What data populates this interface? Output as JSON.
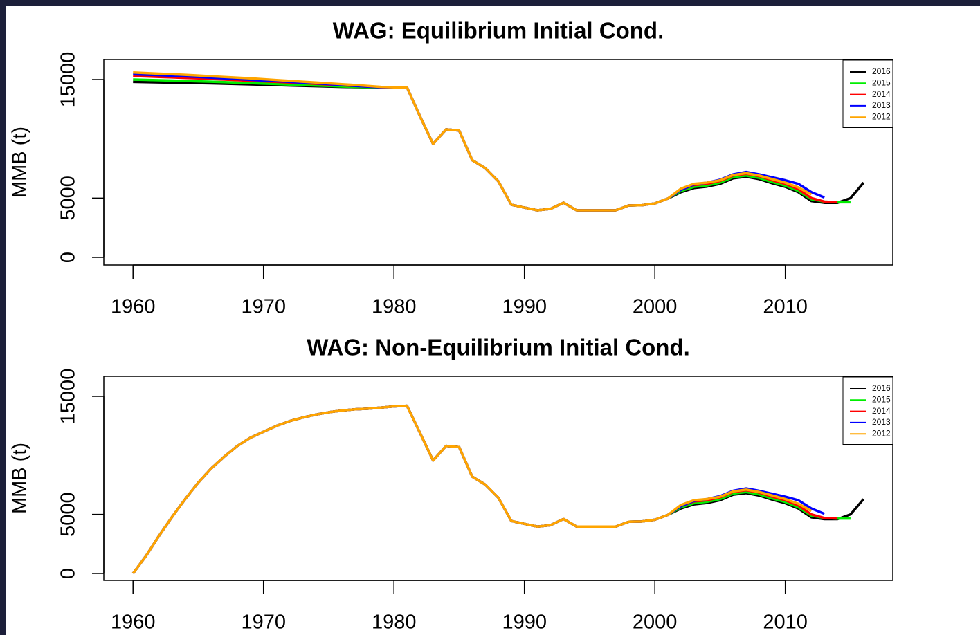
{
  "chart_data": [
    {
      "type": "line",
      "title": "WAG: Equilibrium Initial Cond.",
      "y_label": "MMB (t)",
      "x": [
        1960,
        1961,
        1962,
        1963,
        1964,
        1965,
        1966,
        1967,
        1968,
        1969,
        1970,
        1971,
        1972,
        1973,
        1974,
        1975,
        1976,
        1977,
        1978,
        1979,
        1980,
        1981,
        1982,
        1983,
        1984,
        1985,
        1986,
        1987,
        1988,
        1989,
        1990,
        1991,
        1992,
        1993,
        1994,
        1995,
        1996,
        1997,
        1998,
        1999,
        2000,
        2001,
        2002,
        2003,
        2004,
        2005,
        2006,
        2007,
        2008,
        2009,
        2010,
        2011,
        2012,
        2013,
        2014,
        2015,
        2016
      ],
      "series": [
        {
          "name": "2016",
          "color": "#000000",
          "values": [
            14800,
            14780,
            14760,
            14740,
            14720,
            14700,
            14680,
            14650,
            14620,
            14590,
            14560,
            14530,
            14500,
            14470,
            14440,
            14410,
            14380,
            14360,
            14340,
            14340,
            14340,
            14340,
            11900,
            9570,
            10800,
            10700,
            8200,
            7530,
            6420,
            4440,
            4200,
            3970,
            4090,
            4610,
            3970,
            3970,
            3970,
            3970,
            4380,
            4400,
            4550,
            4960,
            5500,
            5850,
            5970,
            6200,
            6670,
            6800,
            6600,
            6250,
            5950,
            5500,
            4750,
            4600,
            4600,
            5000,
            6300
          ]
        },
        {
          "name": "2015",
          "color": "#00ee00",
          "values": [
            15000,
            14970,
            14940,
            14910,
            14880,
            14850,
            14820,
            14780,
            14740,
            14700,
            14660,
            14620,
            14580,
            14540,
            14500,
            14460,
            14420,
            14380,
            14350,
            14340,
            14340,
            14340,
            11900,
            9570,
            10800,
            10700,
            8200,
            7530,
            6420,
            4440,
            4200,
            3970,
            4090,
            4610,
            3970,
            3970,
            3970,
            3970,
            4380,
            4400,
            4550,
            4960,
            5600,
            5950,
            6070,
            6300,
            6770,
            6900,
            6700,
            6350,
            6050,
            5600,
            4900,
            4700,
            4650,
            4650,
            null
          ]
        },
        {
          "name": "2014",
          "color": "#ff0000",
          "values": [
            15300,
            15260,
            15220,
            15180,
            15140,
            15100,
            15050,
            15000,
            14950,
            14900,
            14850,
            14800,
            14750,
            14700,
            14640,
            14580,
            14520,
            14460,
            14400,
            14350,
            14340,
            14340,
            11900,
            9570,
            10800,
            10700,
            8200,
            7530,
            6420,
            4440,
            4200,
            3970,
            4090,
            4610,
            3970,
            3970,
            3970,
            3970,
            4380,
            4400,
            4550,
            4960,
            5700,
            6100,
            6200,
            6450,
            6900,
            7050,
            6850,
            6500,
            6200,
            5750,
            5000,
            4700,
            4650,
            null,
            null
          ]
        },
        {
          "name": "2013",
          "color": "#0000ff",
          "values": [
            15450,
            15410,
            15370,
            15320,
            15270,
            15220,
            15160,
            15100,
            15040,
            14980,
            14920,
            14860,
            14800,
            14740,
            14680,
            14610,
            14540,
            14470,
            14400,
            14350,
            14340,
            14340,
            11900,
            9570,
            10800,
            10700,
            8200,
            7530,
            6420,
            4440,
            4200,
            3970,
            4090,
            4610,
            3970,
            3970,
            3970,
            3970,
            4380,
            4400,
            4550,
            4960,
            5700,
            6150,
            6300,
            6550,
            7000,
            7200,
            7000,
            6750,
            6500,
            6200,
            5500,
            5050,
            null,
            null,
            null
          ]
        },
        {
          "name": "2012",
          "color": "#ffa500",
          "values": [
            15600,
            15550,
            15500,
            15450,
            15400,
            15340,
            15280,
            15220,
            15160,
            15100,
            15030,
            14960,
            14890,
            14820,
            14750,
            14680,
            14610,
            14540,
            14460,
            14380,
            14340,
            14340,
            11900,
            9570,
            10800,
            10700,
            8200,
            7530,
            6420,
            4440,
            4200,
            3970,
            4090,
            4610,
            3970,
            3970,
            3970,
            3970,
            4380,
            4400,
            4550,
            4960,
            5800,
            6200,
            6300,
            6500,
            6950,
            7100,
            6900,
            6600,
            6300,
            5900,
            5300,
            null,
            null,
            null,
            null
          ]
        }
      ],
      "xlim": [
        1957.76,
        2018.24
      ],
      "ylim": [
        -642,
        16693
      ],
      "xticks": [
        1960,
        1970,
        1980,
        1990,
        2000,
        2010
      ],
      "yticks": [
        0,
        5000,
        15000
      ],
      "legend": "topright"
    },
    {
      "type": "line",
      "title": "WAG: Non-Equilibrium Initial Cond.",
      "y_label": "MMB (t)",
      "x": [
        1960,
        1961,
        1962,
        1963,
        1964,
        1965,
        1966,
        1967,
        1968,
        1969,
        1970,
        1971,
        1972,
        1973,
        1974,
        1975,
        1976,
        1977,
        1978,
        1979,
        1980,
        1981,
        1982,
        1983,
        1984,
        1985,
        1986,
        1987,
        1988,
        1989,
        1990,
        1991,
        1992,
        1993,
        1994,
        1995,
        1996,
        1997,
        1998,
        1999,
        2000,
        2001,
        2002,
        2003,
        2004,
        2005,
        2006,
        2007,
        2008,
        2009,
        2010,
        2011,
        2012,
        2013,
        2014,
        2015,
        2016
      ],
      "series": [
        {
          "name": "2016",
          "color": "#000000",
          "values": [
            0,
            1500,
            3200,
            4800,
            6300,
            7700,
            8900,
            9900,
            10800,
            11500,
            12000,
            12500,
            12900,
            13200,
            13450,
            13650,
            13800,
            13900,
            13950,
            14050,
            14150,
            14200,
            11900,
            9570,
            10800,
            10700,
            8200,
            7530,
            6420,
            4440,
            4200,
            3970,
            4090,
            4610,
            3970,
            3970,
            3970,
            3970,
            4380,
            4400,
            4550,
            4960,
            5500,
            5850,
            5970,
            6200,
            6670,
            6800,
            6600,
            6250,
            5950,
            5500,
            4750,
            4600,
            4600,
            5000,
            6300
          ]
        },
        {
          "name": "2015",
          "color": "#00ee00",
          "values": [
            0,
            1500,
            3200,
            4800,
            6300,
            7700,
            8900,
            9900,
            10800,
            11500,
            12000,
            12500,
            12900,
            13200,
            13450,
            13650,
            13800,
            13900,
            13950,
            14050,
            14150,
            14200,
            11900,
            9570,
            10800,
            10700,
            8200,
            7530,
            6420,
            4440,
            4200,
            3970,
            4090,
            4610,
            3970,
            3970,
            3970,
            3970,
            4380,
            4400,
            4550,
            4960,
            5600,
            5950,
            6070,
            6300,
            6770,
            6900,
            6700,
            6350,
            6050,
            5600,
            4900,
            4700,
            4650,
            4650,
            null
          ]
        },
        {
          "name": "2014",
          "color": "#ff0000",
          "values": [
            0,
            1500,
            3200,
            4800,
            6300,
            7700,
            8900,
            9900,
            10800,
            11500,
            12000,
            12500,
            12900,
            13200,
            13450,
            13650,
            13800,
            13900,
            13950,
            14050,
            14150,
            14200,
            11900,
            9570,
            10800,
            10700,
            8200,
            7530,
            6420,
            4440,
            4200,
            3970,
            4090,
            4610,
            3970,
            3970,
            3970,
            3970,
            4380,
            4400,
            4550,
            4960,
            5700,
            6100,
            6200,
            6450,
            6900,
            7050,
            6850,
            6500,
            6200,
            5750,
            5000,
            4700,
            4650,
            null,
            null
          ]
        },
        {
          "name": "2013",
          "color": "#0000ff",
          "values": [
            0,
            1500,
            3200,
            4800,
            6300,
            7700,
            8900,
            9900,
            10800,
            11500,
            12000,
            12500,
            12900,
            13200,
            13450,
            13650,
            13800,
            13900,
            13950,
            14050,
            14150,
            14200,
            11900,
            9570,
            10800,
            10700,
            8200,
            7530,
            6420,
            4440,
            4200,
            3970,
            4090,
            4610,
            3970,
            3970,
            3970,
            3970,
            4380,
            4400,
            4550,
            4960,
            5700,
            6150,
            6300,
            6550,
            7000,
            7200,
            7000,
            6750,
            6500,
            6200,
            5500,
            5050,
            null,
            null,
            null
          ]
        },
        {
          "name": "2012",
          "color": "#ffa500",
          "values": [
            0,
            1500,
            3200,
            4800,
            6300,
            7700,
            8900,
            9900,
            10800,
            11500,
            12000,
            12500,
            12900,
            13200,
            13450,
            13650,
            13800,
            13900,
            13950,
            14050,
            14150,
            14200,
            11900,
            9570,
            10800,
            10700,
            8200,
            7530,
            6420,
            4440,
            4200,
            3970,
            4090,
            4610,
            3970,
            3970,
            3970,
            3970,
            4380,
            4400,
            4550,
            4960,
            5800,
            6200,
            6300,
            6500,
            6950,
            7100,
            6900,
            6600,
            6300,
            5900,
            5300,
            null,
            null,
            null,
            null
          ]
        }
      ],
      "xlim": [
        1957.76,
        2018.24
      ],
      "ylim": [
        -586,
        16699
      ],
      "xticks": [
        1960,
        1970,
        1980,
        1990,
        2000,
        2010
      ],
      "yticks": [
        0,
        5000,
        15000
      ],
      "legend": "topright"
    }
  ]
}
